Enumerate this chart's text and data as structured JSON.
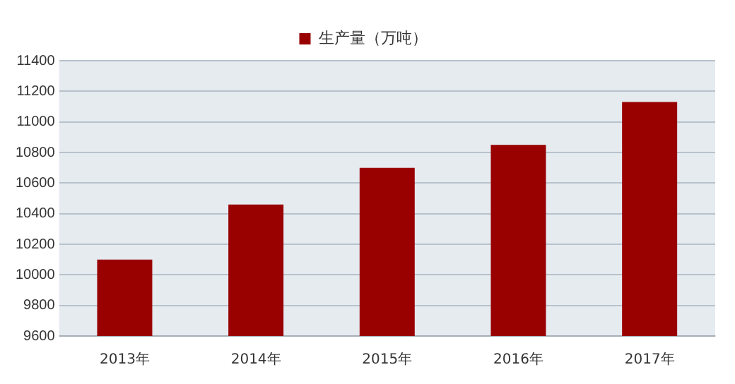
{
  "chart_data": {
    "type": "bar",
    "categories": [
      "2013年",
      "2014年",
      "2015年",
      "2016年",
      "2017年"
    ],
    "series": [
      {
        "name": "生产量（万吨）",
        "color": "#990000",
        "values": [
          10100,
          10460,
          10700,
          10850,
          11130
        ]
      }
    ],
    "ylim": [
      9600,
      11400
    ],
    "yticks": [
      9600,
      9800,
      10000,
      10200,
      10400,
      10600,
      10800,
      11000,
      11200,
      11400
    ],
    "grid": "y",
    "legend": "top"
  }
}
